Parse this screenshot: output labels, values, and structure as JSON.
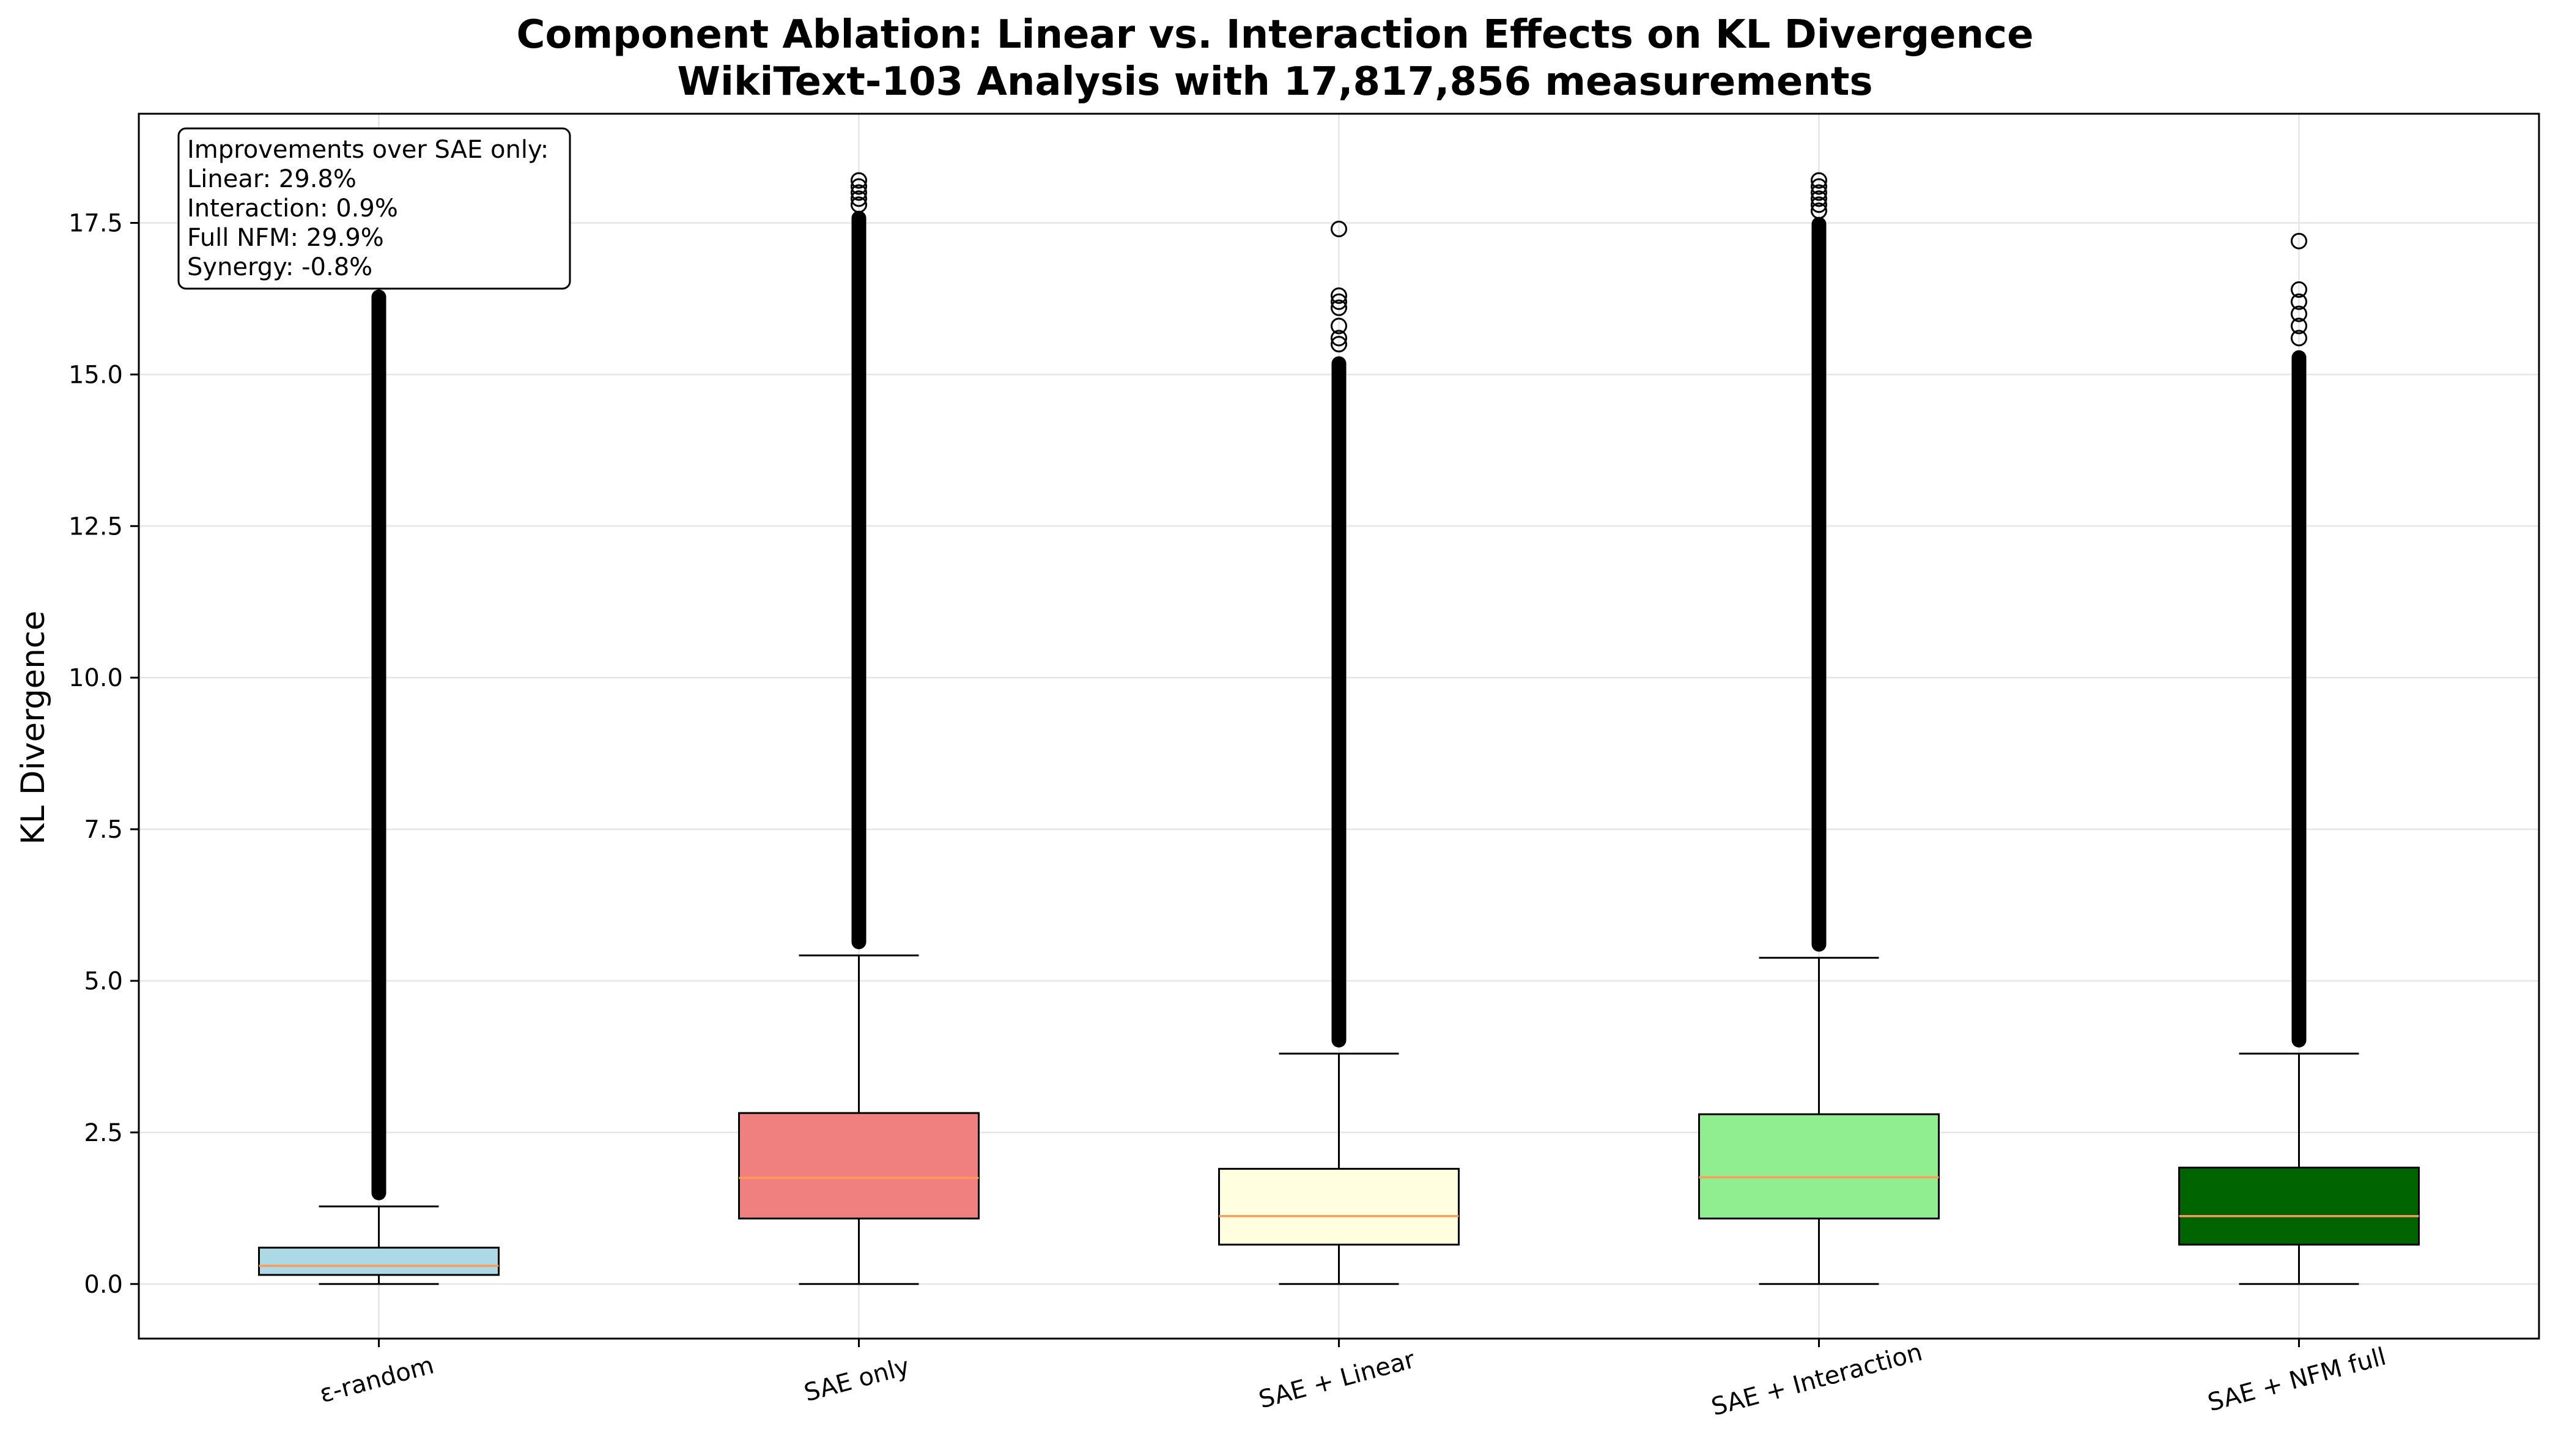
{
  "chart_data": {
    "type": "box",
    "title": "Component Ablation: Linear vs. Interaction Effects on KL Divergence",
    "subtitle": "WikiText-103 Analysis with 17,817,856 measurements",
    "xlabel": "",
    "ylabel": "KL Divergence",
    "ylim": [
      -0.9,
      19.3
    ],
    "yticks": [
      0.0,
      2.5,
      5.0,
      7.5,
      10.0,
      12.5,
      15.0,
      17.5
    ],
    "ytick_labels": [
      "0.0",
      "2.5",
      "5.0",
      "7.5",
      "10.0",
      "12.5",
      "15.0",
      "17.5"
    ],
    "grid": true,
    "categories": [
      "ε-random",
      "SAE only",
      "SAE + Linear",
      "SAE + Interaction",
      "SAE + NFM full"
    ],
    "boxes": [
      {
        "name": "ε-random",
        "color": "#add8e6",
        "whisker_low": 0.0,
        "q1": 0.15,
        "median": 0.3,
        "q3": 0.6,
        "whisker_high": 1.28,
        "outliers_dense_to": 16.4,
        "outliers_sparse": [
          16.6,
          16.8,
          17.0,
          17.2,
          17.4,
          17.6,
          17.8,
          18.2
        ]
      },
      {
        "name": "SAE only",
        "color": "#f08080",
        "whisker_low": 0.0,
        "q1": 1.08,
        "median": 1.75,
        "q3": 2.82,
        "whisker_high": 5.42,
        "outliers_dense_to": 17.7,
        "outliers_sparse": [
          17.8,
          17.9,
          18.0,
          18.1,
          18.2
        ]
      },
      {
        "name": "SAE + Linear",
        "color": "#ffffe0",
        "whisker_low": 0.0,
        "q1": 0.65,
        "median": 1.12,
        "q3": 1.9,
        "whisker_high": 3.8,
        "outliers_dense_to": 15.3,
        "outliers_sparse": [
          15.5,
          15.6,
          15.8,
          16.1,
          16.2,
          16.3,
          17.4
        ]
      },
      {
        "name": "SAE + Interaction",
        "color": "#90ee90",
        "whisker_low": 0.0,
        "q1": 1.08,
        "median": 1.76,
        "q3": 2.8,
        "whisker_high": 5.38,
        "outliers_dense_to": 17.6,
        "outliers_sparse": [
          17.7,
          17.8,
          17.9,
          18.0,
          18.1,
          18.2
        ]
      },
      {
        "name": "SAE + NFM full",
        "color": "#006400",
        "whisker_low": 0.0,
        "q1": 0.65,
        "median": 1.12,
        "q3": 1.92,
        "whisker_high": 3.8,
        "outliers_dense_to": 15.4,
        "outliers_sparse": [
          15.6,
          15.8,
          16.0,
          16.2,
          16.4,
          17.2
        ]
      }
    ],
    "median_color": "#ff9955",
    "annotation": {
      "position": "top-left",
      "lines": [
        "Improvements over SAE only:",
        "Linear: 29.8%",
        "Interaction: 0.9%",
        "Full NFM: 29.9%",
        "Synergy: -0.8%"
      ]
    }
  }
}
